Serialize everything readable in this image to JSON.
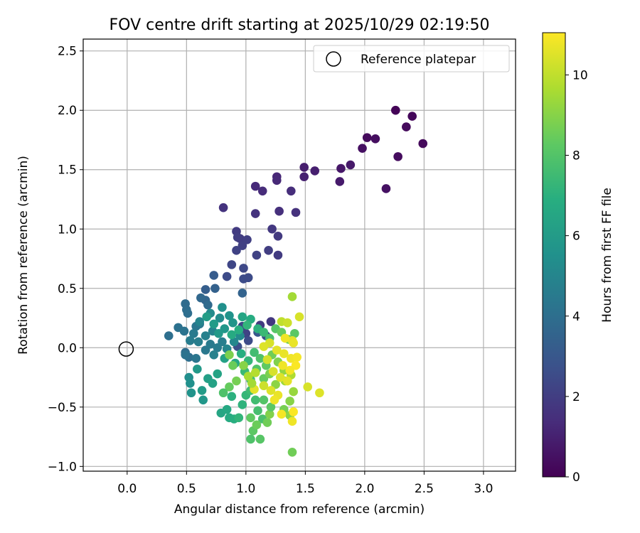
{
  "chart_data": {
    "type": "scatter",
    "title": "FOV centre drift starting at 2025/10/29 02:19:50",
    "xlabel": "Angular distance from reference (arcmin)",
    "ylabel": "Rotation from reference (arcmin)",
    "xlim": [
      -0.37,
      3.27
    ],
    "ylim": [
      -1.04,
      2.6
    ],
    "xticks": [
      "0.0",
      "0.5",
      "1.0",
      "1.5",
      "2.0",
      "2.5",
      "3.0"
    ],
    "yticks": [
      "−1.0",
      "−0.5",
      "0.0",
      "0.5",
      "1.0",
      "1.5",
      "2.0",
      "2.5"
    ],
    "xtick_values": [
      0,
      0.5,
      1.0,
      1.5,
      2.0,
      2.5,
      3.0
    ],
    "ytick_values": [
      -1.0,
      -0.5,
      0.0,
      0.5,
      1.0,
      1.5,
      2.0,
      2.5
    ],
    "grid": true,
    "legend": {
      "position": "top-right",
      "label": "Reference platepar"
    },
    "reference_point": {
      "x": 0.0,
      "y": 0.0
    },
    "colorbar": {
      "label": "Hours from first FF file",
      "range": [
        0,
        11.05
      ],
      "ticks": [
        "0",
        "2",
        "4",
        "6",
        "8",
        "10"
      ],
      "tick_values": [
        0,
        2,
        4,
        6,
        8,
        10
      ],
      "colormap": "viridis"
    },
    "points": [
      [
        2.26,
        2.0,
        0.1
      ],
      [
        2.4,
        1.95,
        0.2
      ],
      [
        2.35,
        1.86,
        0.3
      ],
      [
        2.49,
        1.72,
        0.25
      ],
      [
        2.28,
        1.61,
        0.35
      ],
      [
        2.02,
        1.77,
        0.3
      ],
      [
        2.09,
        1.76,
        0.4
      ],
      [
        1.98,
        1.68,
        0.45
      ],
      [
        2.18,
        1.34,
        0.5
      ],
      [
        1.8,
        1.51,
        0.7
      ],
      [
        1.88,
        1.54,
        0.75
      ],
      [
        1.79,
        1.4,
        0.8
      ],
      [
        1.49,
        1.52,
        0.9
      ],
      [
        1.58,
        1.49,
        0.95
      ],
      [
        1.49,
        1.44,
        1.0
      ],
      [
        1.26,
        1.44,
        1.2
      ],
      [
        1.26,
        1.41,
        1.25
      ],
      [
        1.08,
        1.36,
        1.3
      ],
      [
        1.14,
        1.32,
        1.35
      ],
      [
        1.38,
        1.32,
        1.4
      ],
      [
        0.81,
        1.18,
        1.6
      ],
      [
        1.28,
        1.15,
        1.5
      ],
      [
        1.42,
        1.14,
        1.55
      ],
      [
        1.08,
        1.13,
        1.6
      ],
      [
        0.92,
        0.98,
        1.9
      ],
      [
        0.95,
        0.92,
        1.95
      ],
      [
        1.22,
        1.0,
        1.8
      ],
      [
        1.27,
        0.94,
        1.85
      ],
      [
        0.93,
        0.93,
        2.0
      ],
      [
        1.01,
        0.91,
        2.05
      ],
      [
        0.97,
        0.86,
        2.1
      ],
      [
        1.19,
        0.82,
        2.0
      ],
      [
        0.92,
        0.82,
        2.15
      ],
      [
        1.09,
        0.78,
        2.2
      ],
      [
        1.27,
        0.78,
        1.9
      ],
      [
        0.88,
        0.7,
        2.3
      ],
      [
        0.98,
        0.67,
        2.4
      ],
      [
        0.84,
        0.6,
        2.5
      ],
      [
        0.98,
        0.58,
        2.55
      ],
      [
        1.02,
        0.59,
        2.5
      ],
      [
        1.21,
        0.22,
        1.8
      ],
      [
        1.12,
        0.19,
        1.9
      ],
      [
        1.0,
        0.12,
        2.2
      ],
      [
        0.97,
        0.18,
        2.3
      ],
      [
        1.02,
        0.06,
        2.5
      ],
      [
        0.93,
        0.01,
        2.7
      ],
      [
        1.17,
        0.1,
        2.6
      ],
      [
        1.1,
        0.13,
        3.0
      ],
      [
        0.73,
        0.61,
        3.2
      ],
      [
        0.66,
        0.49,
        3.3
      ],
      [
        0.74,
        0.5,
        3.4
      ],
      [
        0.97,
        0.46,
        3.5
      ],
      [
        0.66,
        0.4,
        3.6
      ],
      [
        0.62,
        0.42,
        3.7
      ],
      [
        0.68,
        0.36,
        3.8
      ],
      [
        0.49,
        0.37,
        3.85
      ],
      [
        0.5,
        0.32,
        3.9
      ],
      [
        0.51,
        0.29,
        3.95
      ],
      [
        0.35,
        0.1,
        4.0
      ],
      [
        0.43,
        0.17,
        4.1
      ],
      [
        0.48,
        0.14,
        4.2
      ],
      [
        0.58,
        0.18,
        4.3
      ],
      [
        0.61,
        0.2,
        4.4
      ],
      [
        0.56,
        0.12,
        4.5
      ],
      [
        0.53,
        0.06,
        4.6
      ],
      [
        0.6,
        0.05,
        4.7
      ],
      [
        0.66,
        0.1,
        4.8
      ],
      [
        0.72,
        0.14,
        4.9
      ],
      [
        0.49,
        -0.04,
        3.9
      ],
      [
        0.52,
        -0.08,
        4.0
      ],
      [
        0.49,
        -0.06,
        4.2
      ],
      [
        0.58,
        -0.09,
        4.3
      ],
      [
        0.66,
        -0.02,
        4.4
      ],
      [
        0.7,
        0.03,
        4.5
      ],
      [
        0.76,
        0.0,
        4.6
      ],
      [
        0.8,
        0.05,
        4.7
      ],
      [
        0.73,
        -0.06,
        4.8
      ],
      [
        0.84,
        -0.01,
        5.0
      ],
      [
        0.9,
        0.05,
        5.1
      ],
      [
        0.95,
        0.1,
        5.2
      ],
      [
        0.61,
        0.22,
        5.0
      ],
      [
        0.7,
        0.29,
        5.2
      ],
      [
        0.78,
        0.25,
        5.3
      ],
      [
        0.8,
        0.34,
        5.5
      ],
      [
        0.86,
        0.27,
        5.6
      ],
      [
        0.89,
        0.21,
        5.7
      ],
      [
        0.82,
        0.16,
        5.8
      ],
      [
        0.77,
        0.12,
        5.9
      ],
      [
        0.73,
        0.2,
        6.0
      ],
      [
        0.67,
        0.26,
        6.1
      ],
      [
        0.52,
        -0.25,
        5.4
      ],
      [
        0.53,
        -0.3,
        5.5
      ],
      [
        0.54,
        -0.38,
        5.6
      ],
      [
        0.63,
        -0.36,
        6.0
      ],
      [
        0.64,
        -0.44,
        5.8
      ],
      [
        0.59,
        -0.18,
        5.9
      ],
      [
        0.68,
        -0.26,
        6.2
      ],
      [
        0.72,
        -0.3,
        6.3
      ],
      [
        0.76,
        -0.22,
        6.4
      ],
      [
        0.79,
        -0.55,
        6.5
      ],
      [
        0.84,
        -0.52,
        6.6
      ],
      [
        0.86,
        -0.59,
        6.7
      ],
      [
        0.9,
        -0.6,
        6.9
      ],
      [
        0.94,
        -0.59,
        7.2
      ],
      [
        0.88,
        -0.41,
        7.0
      ],
      [
        0.97,
        -0.48,
        7.1
      ],
      [
        1.0,
        -0.4,
        7.3
      ],
      [
        1.04,
        -0.36,
        7.5
      ],
      [
        1.08,
        -0.44,
        7.6
      ],
      [
        1.1,
        -0.53,
        7.7
      ],
      [
        1.14,
        -0.6,
        7.8
      ],
      [
        1.04,
        -0.77,
        7.9
      ],
      [
        1.12,
        -0.77,
        8.1
      ],
      [
        1.06,
        -0.7,
        8.2
      ],
      [
        0.97,
        0.26,
        6.5
      ],
      [
        1.04,
        0.24,
        6.8
      ],
      [
        1.1,
        0.16,
        7.0
      ],
      [
        1.15,
        0.13,
        7.4
      ],
      [
        1.01,
        0.19,
        7.2
      ],
      [
        0.94,
        0.15,
        6.9
      ],
      [
        0.88,
        0.11,
        6.7
      ],
      [
        1.2,
        0.08,
        7.8
      ],
      [
        1.25,
        0.16,
        8.1
      ],
      [
        1.3,
        0.13,
        8.4
      ],
      [
        1.36,
        0.07,
        8.6
      ],
      [
        1.41,
        0.12,
        8.2
      ],
      [
        0.82,
        -0.09,
        6.3
      ],
      [
        0.91,
        -0.13,
        6.6
      ],
      [
        0.96,
        -0.05,
        6.9
      ],
      [
        1.02,
        -0.11,
        7.3
      ],
      [
        1.07,
        -0.04,
        7.6
      ],
      [
        1.12,
        -0.09,
        7.9
      ],
      [
        1.17,
        -0.15,
        8.3
      ],
      [
        1.22,
        -0.06,
        8.6
      ],
      [
        1.27,
        -0.12,
        8.9
      ],
      [
        1.32,
        -0.19,
        9.2
      ],
      [
        0.99,
        -0.2,
        7.4
      ],
      [
        1.04,
        -0.27,
        7.7
      ],
      [
        1.09,
        -0.18,
        8.0
      ],
      [
        1.15,
        -0.26,
        8.4
      ],
      [
        1.2,
        -0.22,
        8.8
      ],
      [
        1.25,
        -0.31,
        9.1
      ],
      [
        1.33,
        -0.28,
        9.4
      ],
      [
        1.38,
        -0.23,
        9.7
      ],
      [
        1.4,
        -0.37,
        9.3
      ],
      [
        1.37,
        -0.45,
        9.0
      ],
      [
        1.18,
        -0.63,
        8.6
      ],
      [
        1.2,
        -0.56,
        8.9
      ],
      [
        1.21,
        -0.5,
        8.2
      ],
      [
        1.15,
        -0.44,
        8.0
      ],
      [
        1.32,
        -0.52,
        8.7
      ],
      [
        1.37,
        -0.57,
        9.1
      ],
      [
        1.04,
        -0.59,
        8.3
      ],
      [
        1.09,
        -0.65,
        8.5
      ],
      [
        1.39,
        -0.88,
        8.6
      ],
      [
        1.39,
        0.43,
        9.5
      ],
      [
        1.3,
        0.22,
        10.0
      ],
      [
        1.35,
        0.21,
        10.2
      ],
      [
        1.45,
        0.26,
        10.4
      ],
      [
        1.39,
        0.06,
        10.6
      ],
      [
        1.4,
        0.04,
        10.7
      ],
      [
        1.33,
        0.08,
        10.8
      ],
      [
        1.2,
        0.04,
        10.4
      ],
      [
        1.15,
        0.01,
        10.5
      ],
      [
        1.26,
        -0.02,
        10.6
      ],
      [
        1.32,
        -0.05,
        10.7
      ],
      [
        1.38,
        -0.09,
        10.8
      ],
      [
        1.43,
        -0.08,
        10.9
      ],
      [
        1.42,
        -0.15,
        11.0
      ],
      [
        1.37,
        -0.19,
        10.9
      ],
      [
        1.31,
        -0.15,
        10.8
      ],
      [
        1.18,
        -0.1,
        10.3
      ],
      [
        1.23,
        -0.2,
        10.4
      ],
      [
        1.29,
        -0.25,
        10.5
      ],
      [
        1.35,
        -0.28,
        10.6
      ],
      [
        1.15,
        -0.32,
        10.2
      ],
      [
        1.21,
        -0.36,
        10.5
      ],
      [
        1.27,
        -0.4,
        10.7
      ],
      [
        1.24,
        -0.44,
        10.8
      ],
      [
        1.07,
        -0.35,
        10.6
      ],
      [
        1.52,
        -0.33,
        10.4
      ],
      [
        1.62,
        -0.38,
        10.5
      ],
      [
        1.3,
        -0.56,
        10.9
      ],
      [
        1.4,
        -0.54,
        11.0
      ],
      [
        1.39,
        -0.62,
        10.8
      ],
      [
        1.02,
        -0.24,
        9.6
      ],
      [
        1.08,
        -0.21,
        9.8
      ],
      [
        1.05,
        -0.3,
        9.5
      ],
      [
        0.98,
        -0.15,
        9.0
      ],
      [
        0.92,
        -0.28,
        8.7
      ],
      [
        0.86,
        -0.33,
        8.4
      ],
      [
        0.81,
        -0.38,
        7.9
      ],
      [
        0.86,
        -0.06,
        8.8
      ],
      [
        0.89,
        -0.15,
        8.5
      ]
    ]
  }
}
